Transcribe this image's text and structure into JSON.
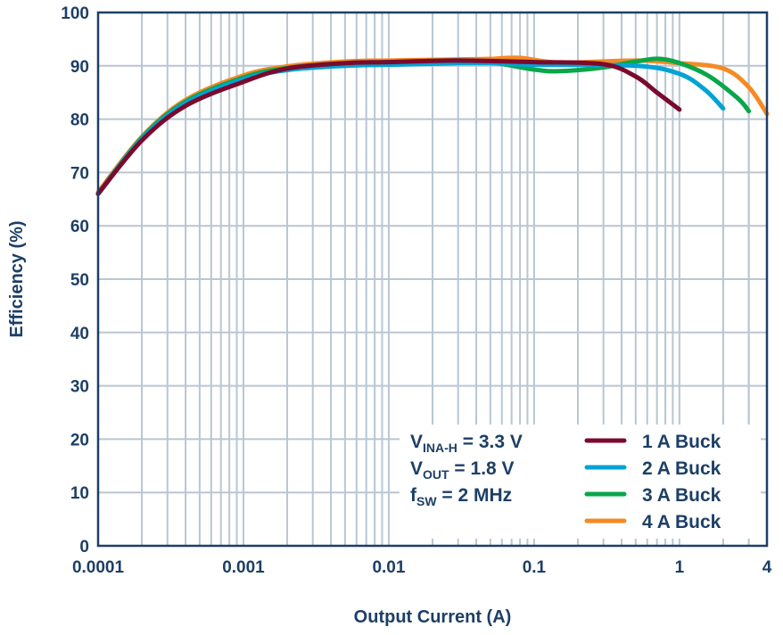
{
  "chart_data": {
    "type": "line",
    "xlabel": "Output Current (A)",
    "ylabel": "Efficiency (%)",
    "xscale": "log",
    "xlim": [
      0.0001,
      4
    ],
    "ylim": [
      0,
      100
    ],
    "grid": true,
    "legend_placement": "bottom-right",
    "x_tick_labels": [
      "0.0001",
      "0.001",
      "0.01",
      "0.1",
      "1",
      "4"
    ],
    "y_tick_labels": [
      "0",
      "10",
      "20",
      "30",
      "40",
      "50",
      "60",
      "70",
      "80",
      "90",
      "100"
    ],
    "annotation": {
      "vin_main": "V",
      "vin_sub": "INA-H",
      "vin_val": " = 3.3 V",
      "vout_main": "V",
      "vout_sub": "OUT",
      "vout_val": " = 1.8 V",
      "fsw_main": "f",
      "fsw_sub": "SW",
      "fsw_val": " = 2 MHz"
    },
    "series": [
      {
        "name": "1 A Buck",
        "color": "#7a0a2e",
        "x": [
          0.0001,
          0.0002,
          0.0004,
          0.001,
          0.002,
          0.005,
          0.01,
          0.03,
          0.1,
          0.3,
          0.5,
          0.7,
          1
        ],
        "y": [
          66,
          76,
          82.5,
          87,
          89.5,
          90.5,
          90.7,
          91,
          90.7,
          90.3,
          88,
          85,
          81.8
        ]
      },
      {
        "name": "2 A Buck",
        "color": "#00a3d4",
        "x": [
          0.0001,
          0.0002,
          0.0004,
          0.001,
          0.002,
          0.005,
          0.01,
          0.03,
          0.05,
          0.1,
          0.5,
          1,
          1.5,
          2
        ],
        "y": [
          66,
          76.3,
          83,
          87.5,
          89.2,
          90,
          90.2,
          90.5,
          90.5,
          90.2,
          90,
          88.5,
          85.5,
          82
        ]
      },
      {
        "name": "3 A Buck",
        "color": "#0aa64a",
        "x": [
          0.0001,
          0.0002,
          0.0004,
          0.001,
          0.002,
          0.005,
          0.01,
          0.03,
          0.05,
          0.1,
          0.15,
          0.3,
          0.5,
          0.8,
          1.5,
          2.5,
          3
        ],
        "y": [
          66,
          76.5,
          83.3,
          87.8,
          89.6,
          90.5,
          90.7,
          91,
          90.7,
          89.3,
          89,
          89.7,
          90.8,
          91.2,
          88.5,
          84,
          81.5
        ]
      },
      {
        "name": "4 A Buck",
        "color": "#f58a25",
        "x": [
          0.0001,
          0.0002,
          0.0004,
          0.001,
          0.002,
          0.005,
          0.01,
          0.03,
          0.05,
          0.08,
          0.15,
          0.5,
          1,
          2,
          3,
          4
        ],
        "y": [
          66.3,
          76.7,
          83.6,
          88.2,
          89.9,
          90.8,
          91,
          91.2,
          91.3,
          91.5,
          90.6,
          91,
          90.5,
          89.5,
          86,
          81
        ]
      }
    ]
  }
}
